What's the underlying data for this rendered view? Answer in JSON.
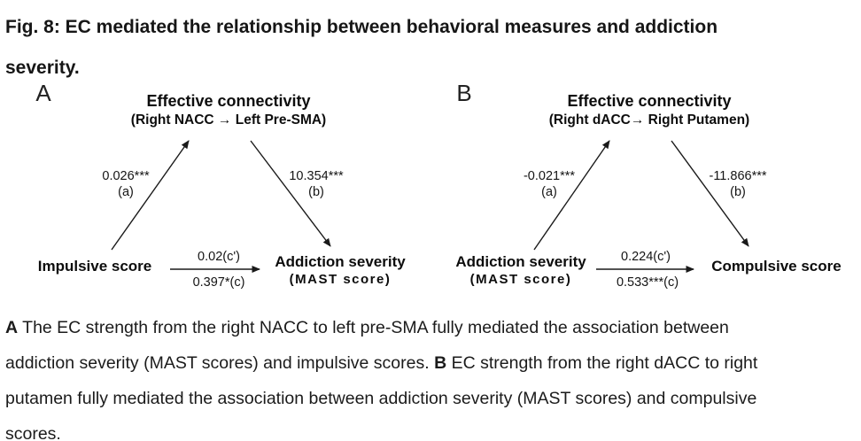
{
  "figure_title": {
    "line1": "Fig. 8: EC mediated the relationship between behavioral measures and addiction",
    "line2": "severity."
  },
  "panel_a": {
    "label": "A",
    "mediator": {
      "title": "Effective connectivity",
      "subtitle": "(Right NACC → Left Pre-SMA)"
    },
    "path_a": {
      "value": "0.026***",
      "name": "(a)"
    },
    "path_b": {
      "value": "10.354***",
      "name": "(b)"
    },
    "path_c_prime": "0.02(c')",
    "path_c": "0.397*(c)",
    "predictor": {
      "title": "Impulsive score"
    },
    "outcome": {
      "title": "Addiction severity",
      "subtitle": "(MAST score)"
    }
  },
  "panel_b": {
    "label": "B",
    "mediator": {
      "title": "Effective connectivity",
      "subtitle": "(Right dACC→ Right Putamen)"
    },
    "path_a": {
      "value": "-0.021***",
      "name": "(a)"
    },
    "path_b": {
      "value": "-11.866***",
      "name": "(b)"
    },
    "path_c_prime": "0.224(c')",
    "path_c": "0.533***(c)",
    "predictor": {
      "title": "Addiction severity",
      "subtitle": "(MAST score)"
    },
    "outcome": {
      "title": "Compulsive score"
    }
  },
  "caption": {
    "lines": [
      [
        {
          "t": "A",
          "b": true
        },
        {
          "t": " The EC strength from the right NACC to left pre-SMA fully mediated the association between"
        }
      ],
      [
        {
          "t": "addiction severity (MAST scores) and impulsive scores. "
        },
        {
          "t": "B",
          "b": true
        },
        {
          "t": " EC strength from the right dACC to right"
        }
      ],
      [
        {
          "t": "putamen fully mediated the association between addiction severity (MAST scores) and compulsive"
        }
      ],
      [
        {
          "t": "scores."
        }
      ]
    ]
  },
  "colors": {
    "text": "#111111",
    "arrow": "#1a1a1a",
    "background": "#ffffff"
  }
}
